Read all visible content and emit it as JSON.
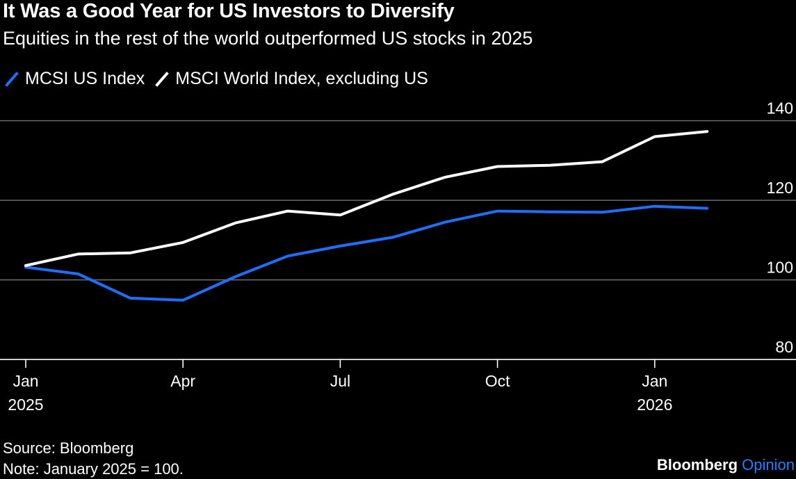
{
  "chart_data": {
    "type": "line",
    "title": "It Was a Good Year for US Investors to Diversify",
    "subtitle": "Equities in the rest of the world outperformed US stocks in 2025",
    "x": [
      "2025-01",
      "2025-02",
      "2025-03",
      "2025-04",
      "2025-05",
      "2025-06",
      "2025-07",
      "2025-08",
      "2025-09",
      "2025-10",
      "2025-11",
      "2025-12",
      "2026-01",
      "2026-02"
    ],
    "series": [
      {
        "name": "MCSI US Index",
        "color": "#1f6fff",
        "values": [
          103.2,
          101.5,
          95.4,
          94.9,
          100.8,
          106.0,
          108.5,
          110.7,
          114.5,
          117.3,
          117.1,
          117.0,
          118.5,
          118.0
        ]
      },
      {
        "name": "MSCI World Index, excluding US",
        "color": "#ffffff",
        "values": [
          103.6,
          106.5,
          106.8,
          109.4,
          114.3,
          117.3,
          116.3,
          121.5,
          125.8,
          128.5,
          128.8,
          129.7,
          136.0,
          137.3
        ]
      }
    ],
    "ylim": [
      76,
      145
    ],
    "yticks": [
      "140",
      "120",
      "100",
      "80"
    ],
    "xticks": [
      {
        "label": "Jan",
        "sublabel": "2025",
        "index": 0
      },
      {
        "label": "Apr",
        "sublabel": "",
        "index": 3
      },
      {
        "label": "Jul",
        "sublabel": "",
        "index": 6
      },
      {
        "label": "Oct",
        "sublabel": "",
        "index": 9
      },
      {
        "label": "Jan",
        "sublabel": "2026",
        "index": 12
      }
    ],
    "xlabel": "",
    "ylabel": "",
    "grid": true,
    "legend_position": "top-left"
  },
  "footer": {
    "source": "Source: Bloomberg",
    "note": "Note: January 2025 = 100.",
    "brand": "Bloomberg",
    "brand_suffix": "Opinion",
    "brand_suffix_color": "#2b7cff"
  }
}
